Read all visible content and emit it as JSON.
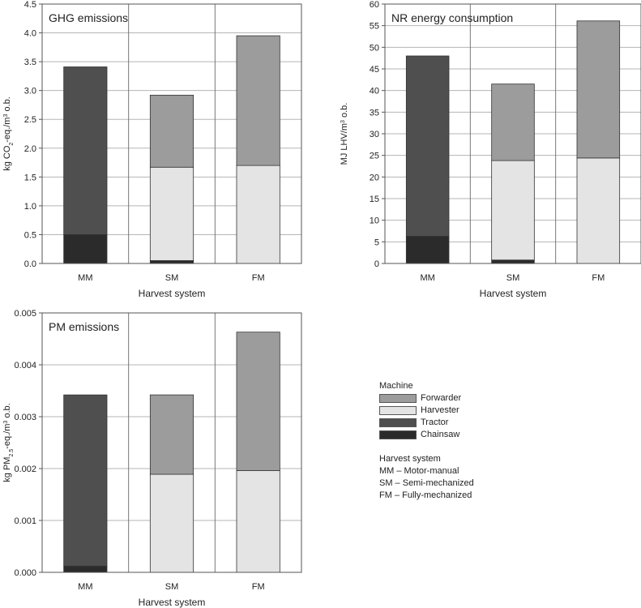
{
  "chart_data": [
    {
      "type": "bar",
      "stacked": true,
      "title": "GHG emissions",
      "xlabel": "Harvest system",
      "ylabel_parts": [
        "kg CO",
        "2",
        "-eq./m",
        "3",
        " o.b."
      ],
      "categories": [
        "MM",
        "SM",
        "FM"
      ],
      "ylim": [
        0,
        4.5
      ],
      "yticks": [
        "0.0",
        "0.5",
        "1.0",
        "1.5",
        "2.0",
        "2.5",
        "3.0",
        "3.5",
        "4.0",
        "4.5"
      ],
      "series": [
        {
          "name": "Chainsaw",
          "values": [
            0.5,
            0.05,
            0
          ]
        },
        {
          "name": "Tractor",
          "values": [
            2.91,
            0,
            0
          ]
        },
        {
          "name": "Harvester",
          "values": [
            0,
            1.62,
            1.7
          ]
        },
        {
          "name": "Forwarder",
          "values": [
            0,
            1.25,
            2.25
          ]
        }
      ],
      "grid": true
    },
    {
      "type": "bar",
      "stacked": true,
      "title": "NR energy consumption",
      "xlabel": "Harvest system",
      "ylabel_parts": [
        "MJ LHV/m",
        "3",
        " o.b."
      ],
      "categories": [
        "MM",
        "SM",
        "FM"
      ],
      "ylim": [
        0,
        60
      ],
      "yticks": [
        "0",
        "5",
        "10",
        "15",
        "20",
        "25",
        "30",
        "35",
        "40",
        "45",
        "50",
        "55",
        "60"
      ],
      "series": [
        {
          "name": "Chainsaw",
          "values": [
            6.3,
            0.8,
            0
          ]
        },
        {
          "name": "Tractor",
          "values": [
            41.7,
            0,
            0
          ]
        },
        {
          "name": "Harvester",
          "values": [
            0,
            23.0,
            24.4
          ]
        },
        {
          "name": "Forwarder",
          "values": [
            0,
            17.7,
            31.7
          ]
        }
      ],
      "grid": true
    },
    {
      "type": "bar",
      "stacked": true,
      "title": "PM emissions",
      "xlabel": "Harvest system",
      "ylabel_parts": [
        "kg PM",
        "2.5",
        "-eq./m",
        "3",
        " o.b."
      ],
      "categories": [
        "MM",
        "SM",
        "FM"
      ],
      "ylim": [
        0,
        0.005
      ],
      "yticks": [
        "0.000",
        "0.001",
        "0.002",
        "0.003",
        "0.004",
        "0.005"
      ],
      "series": [
        {
          "name": "Chainsaw",
          "values": [
            0.00012,
            0,
            0
          ]
        },
        {
          "name": "Tractor",
          "values": [
            0.0033,
            0,
            0
          ]
        },
        {
          "name": "Harvester",
          "values": [
            0,
            0.00189,
            0.00196
          ]
        },
        {
          "name": "Forwarder",
          "values": [
            0,
            0.00153,
            0.00267
          ]
        }
      ],
      "grid": true
    }
  ],
  "colors": {
    "Chainsaw": "#2b2b2b",
    "Tractor": "#4f4f4f",
    "Harvester": "#e4e4e4",
    "Forwarder": "#9c9c9c"
  },
  "legend": {
    "title": "Machine",
    "items": [
      "Forwarder",
      "Harvester",
      "Tractor",
      "Chainsaw"
    ],
    "systems_title": "Harvest system",
    "systems": [
      "MM – Motor-manual",
      "SM – Semi-mechanized",
      "FM – Fully-mechanized"
    ]
  }
}
